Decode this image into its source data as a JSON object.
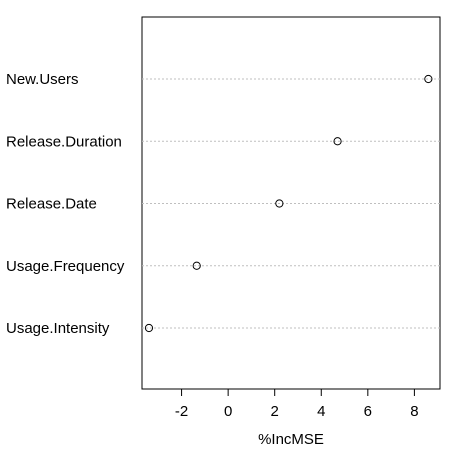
{
  "chart_data": {
    "type": "scatter",
    "categories": [
      "New.Users",
      "Release.Duration",
      "Release.Date",
      "Usage.Frequency",
      "Usage.Intensity"
    ],
    "values": [
      8.6,
      4.7,
      2.2,
      -1.35,
      -3.4
    ],
    "xlabel": "%IncMSE",
    "xlim": [
      -3.7,
      9.1
    ],
    "xticks": [
      -2,
      0,
      2,
      4,
      6,
      8
    ],
    "grid": "horizontal dotted",
    "marker": "open-circle"
  }
}
